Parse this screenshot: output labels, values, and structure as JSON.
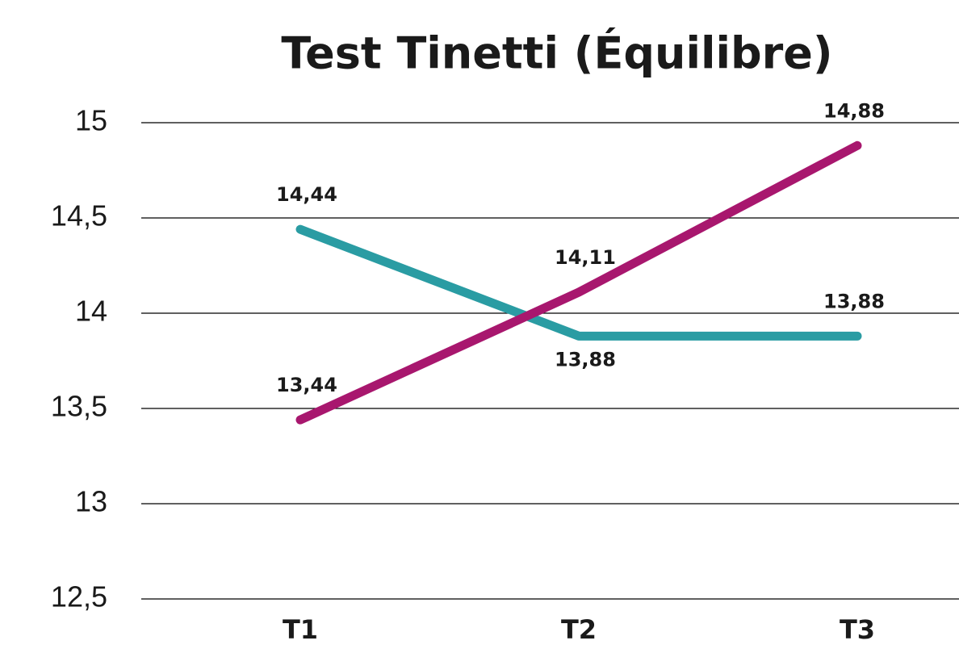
{
  "chart_data": {
    "type": "line",
    "title": "Test Tinetti (Équilibre)",
    "categories": [
      "T1",
      "T2",
      "T3"
    ],
    "series": [
      {
        "color": "#2a9ca3",
        "values": [
          14.44,
          13.88,
          13.88
        ],
        "value_labels": [
          "14,44",
          "13,88",
          "13,88"
        ]
      },
      {
        "color": "#a8176e",
        "values": [
          13.44,
          14.11,
          14.88
        ],
        "value_labels": [
          "13,44",
          "14,11",
          "14,88"
        ]
      }
    ],
    "ylim": [
      12.5,
      15
    ],
    "yticks": [
      {
        "value": 12.5,
        "label": "12,5"
      },
      13,
      {
        "value": 13.5,
        "label": "13,5"
      },
      14,
      {
        "value": 14.5,
        "label": "14,5"
      },
      15
    ],
    "grid": true
  }
}
